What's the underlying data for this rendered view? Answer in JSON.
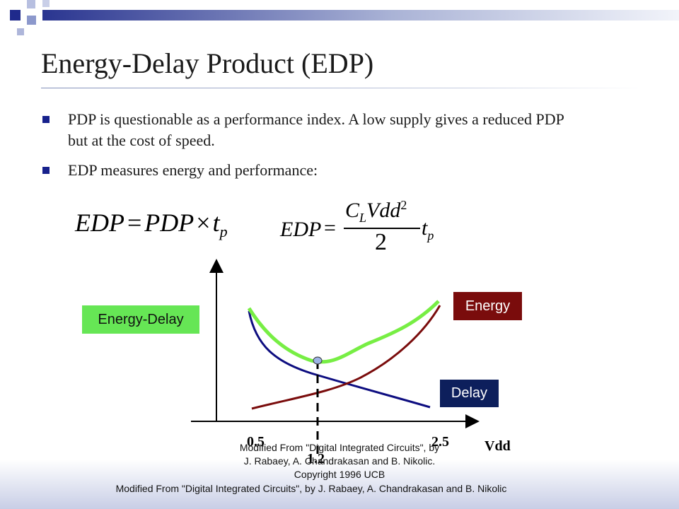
{
  "slide": {
    "title": "Energy-Delay Product (EDP)",
    "bullets": [
      "PDP is questionable as a performance index. A low supply gives a reduced PDP but at the cost of speed.",
      "EDP measures energy and performance:"
    ]
  },
  "formulas": {
    "eq1": {
      "lhs": "EDP",
      "eq": "=",
      "pdp": "PDP",
      "times": "×",
      "t": "t",
      "sub": "p"
    },
    "eq2": {
      "lhs": "EDP",
      "eq": "=",
      "c": "C",
      "c_sub": "L",
      "vdd": "Vdd",
      "vdd_sup": "2",
      "den": "2",
      "t": "t",
      "sub": "p"
    }
  },
  "diagram": {
    "labels": {
      "energy_delay": "Energy-Delay",
      "energy": "Energy",
      "delay": "Delay"
    },
    "axis": {
      "x_label": "Vdd",
      "tick_low": "0.5",
      "tick_high": "2.5",
      "tick_min": "1.2"
    },
    "colors": {
      "energy_delay": "#77ee44",
      "energy": "#7a0c0c",
      "delay": "#0d0d80",
      "energy_delay_box": "#66e655",
      "energy_box": "#7a0c0c",
      "delay_box": "#0d1f5c",
      "min_point": "#9db3e6"
    }
  },
  "footer": {
    "center_note": "Modified From \"Digital Integrated Circuits\", by J. Rabaey, A. Chandrakasan and B. Nikolic. Copyright 1996 UCB",
    "bottom_note": "Modified From \"Digital Integrated Circuits\", by J. Rabaey, A. Chandrakasan and B. Nikolic"
  }
}
